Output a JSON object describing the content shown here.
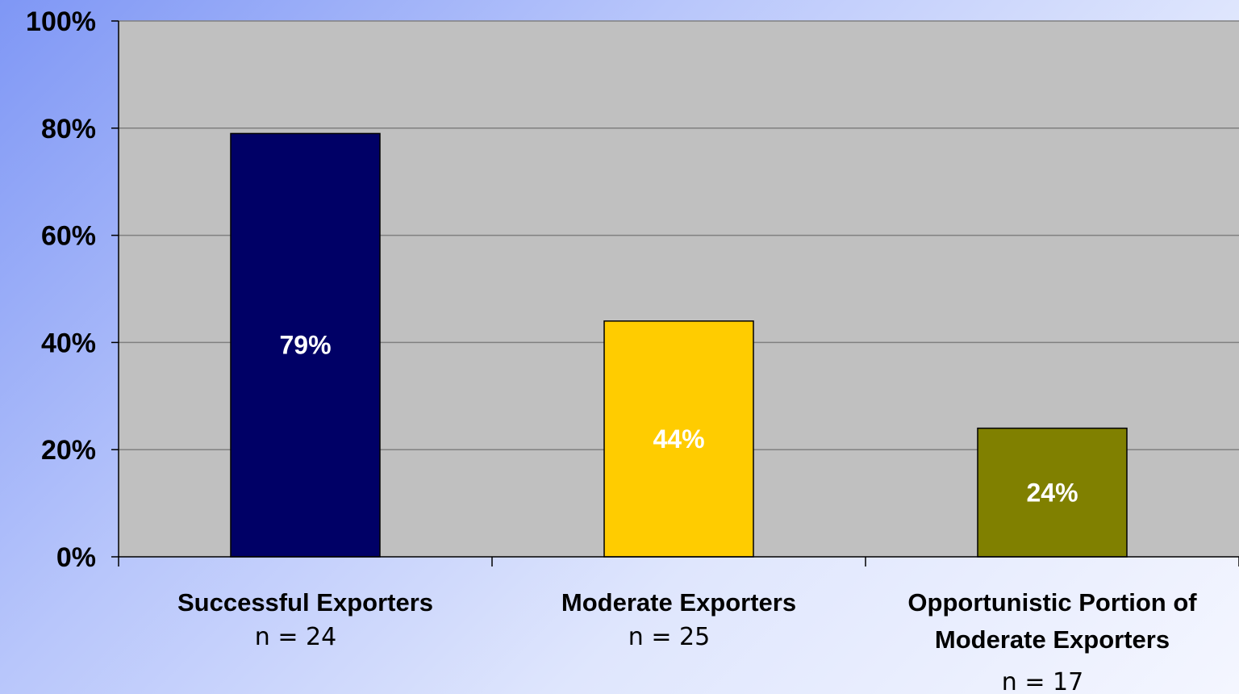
{
  "chart_data": {
    "type": "bar",
    "categories": [
      [
        "Successful Exporters"
      ],
      [
        "Moderate Exporters"
      ],
      [
        "Opportunistic Portion of",
        "Moderate Exporters"
      ]
    ],
    "sample_sizes": [
      "n = 24",
      "n = 25",
      "n = 17"
    ],
    "values": [
      79,
      44,
      24
    ],
    "data_labels": [
      "79%",
      "44%",
      "24%"
    ],
    "bar_colors": [
      "#000066",
      "#ffcc00",
      "#808000"
    ],
    "ylim": [
      0,
      100
    ],
    "yticks": [
      0,
      20,
      40,
      60,
      80,
      100
    ],
    "ytick_labels": [
      "0%",
      "20%",
      "40%",
      "60%",
      "80%",
      "100%"
    ],
    "grid": true,
    "legend": false,
    "plot_background": "#c0c0c0"
  }
}
